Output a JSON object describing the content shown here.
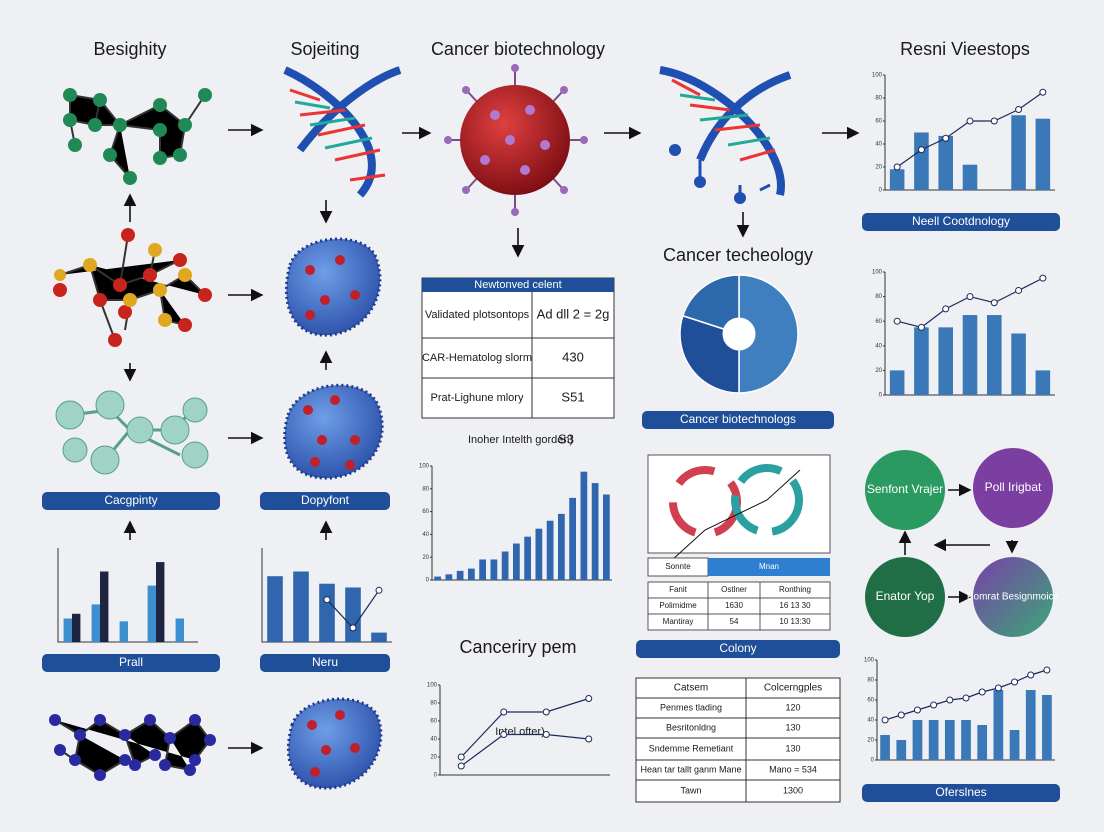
{
  "headings": [
    "Besighity",
    "Sojeiting",
    "Cancer biotechnology",
    "Resni Vieestops"
  ],
  "labels": {
    "cacgpinty": "Cacgpinty",
    "dopyfont": "Dopyfont",
    "prall": "Prall",
    "neru": "Neru",
    "neell": "Neell Cootdnology",
    "cancer_biotechnologs": "Cancer biotechnologs",
    "colony": "Colony",
    "oferslnes": "Oferslnes",
    "cancer_techeology": "Cancer techeology",
    "canceriry_pem": "Canceriry pem",
    "inoher": "Inoher Intelth gorden)",
    "inoher_value": "S3",
    "intel_ofter": "Intel ofter)"
  },
  "table1": {
    "title": "Newtonved celent",
    "rows": [
      [
        "Validated plotsontops",
        "Ad dll 2 = 2g"
      ],
      [
        "CAR-Hematolog slorm",
        "430"
      ],
      [
        "Prat-Lighune mlory",
        "Ѕ51"
      ]
    ]
  },
  "table2": {
    "tabs": [
      "Sonnte",
      "Mnan"
    ],
    "rows": [
      [
        "Fanit",
        "Ostlner",
        "Ronthing"
      ],
      [
        "Polimidme",
        "1630",
        "16 13 30"
      ],
      [
        "Mantiray",
        "54",
        "10 13:30"
      ]
    ]
  },
  "table3": {
    "header": [
      "Catsem",
      "Colcerngples"
    ],
    "rows": [
      [
        "Penmes tlading",
        "120"
      ],
      [
        "Besritonldng",
        "130"
      ],
      [
        "Sndemme Remetiant",
        "130"
      ],
      [
        "Hean tar tallt ganm Mane",
        "Mano = 534"
      ],
      [
        "Tawn",
        "1300"
      ]
    ]
  },
  "circles": [
    "Senfont Vrajer",
    "Poll Irigbat",
    "Enator Yop",
    "Pomrat Besignmoice"
  ],
  "chart_data": [
    {
      "type": "bar_line",
      "ylim": [
        0,
        100
      ],
      "yticks": [
        0,
        20,
        40,
        60,
        80,
        100
      ],
      "series": [
        {
          "type": "bar",
          "color": "#3a78b8",
          "values": [
            18,
            50,
            47,
            22,
            0,
            65,
            62
          ]
        },
        {
          "type": "line",
          "color": "#1c2b5a",
          "values": [
            20,
            35,
            45,
            60,
            60,
            70,
            85
          ]
        }
      ]
    },
    {
      "type": "bar_line",
      "ylim": [
        0,
        100
      ],
      "yticks": [
        0,
        20,
        40,
        60,
        80,
        100
      ],
      "series": [
        {
          "type": "bar",
          "color": "#3a78b8",
          "values": [
            20,
            55,
            55,
            65,
            65,
            50,
            20
          ]
        },
        {
          "type": "line",
          "color": "#1c2b5a",
          "values": [
            60,
            55,
            70,
            80,
            75,
            85,
            95
          ]
        }
      ]
    },
    {
      "type": "bar_line",
      "ylim": [
        0,
        100
      ],
      "yticks": [
        0,
        20,
        40,
        60,
        80,
        100
      ],
      "series": [
        {
          "type": "bar",
          "color": "#3a78b8",
          "values": [
            25,
            20,
            40,
            40,
            40,
            40,
            35,
            70,
            30,
            70,
            65
          ]
        },
        {
          "type": "line",
          "color": "#1c2b5a",
          "values": [
            40,
            45,
            50,
            55,
            60,
            62,
            68,
            72,
            78,
            85,
            90
          ]
        }
      ]
    },
    {
      "type": "bar_line",
      "ylim": [
        0,
        100
      ],
      "yticks": [
        0,
        20,
        40,
        60,
        80,
        100
      ],
      "series": [
        {
          "type": "bar",
          "color": "#2f66ad",
          "values": [
            3,
            5,
            8,
            10,
            18,
            18,
            25,
            32,
            38,
            45,
            52,
            58,
            72,
            95,
            85,
            75
          ]
        }
      ]
    },
    {
      "type": "bar_line",
      "ylim": [
        0,
        100
      ],
      "series": [
        {
          "type": "bar",
          "color": "#3d8fd0",
          "values": [
            25,
            40,
            22,
            60,
            25
          ]
        },
        {
          "type": "bar",
          "color": "#1f2540",
          "values": [
            30,
            75,
            0,
            85,
            0
          ]
        }
      ]
    },
    {
      "type": "bar_line",
      "ylim": [
        0,
        100
      ],
      "series": [
        {
          "type": "bar",
          "color": "#2f66ad",
          "values": [
            70,
            75,
            62,
            58,
            10
          ]
        },
        {
          "type": "line",
          "color": "#1c2b5a",
          "values": [
            null,
            null,
            45,
            15,
            55
          ]
        }
      ]
    },
    {
      "type": "line",
      "ylim": [
        0,
        100
      ],
      "yticks": [
        0,
        20,
        40,
        60,
        80,
        100
      ],
      "series": [
        {
          "type": "line",
          "color": "#1c2b5a",
          "values": [
            20,
            70,
            70,
            85
          ]
        },
        {
          "type": "line",
          "color": "#1c2b5a",
          "values": [
            10,
            45,
            45,
            40
          ]
        }
      ]
    },
    {
      "type": "pie",
      "values": [
        50,
        30,
        20
      ],
      "colors": [
        "#3f7fc0",
        "#1f4f98",
        "#2d68ad"
      ]
    }
  ]
}
